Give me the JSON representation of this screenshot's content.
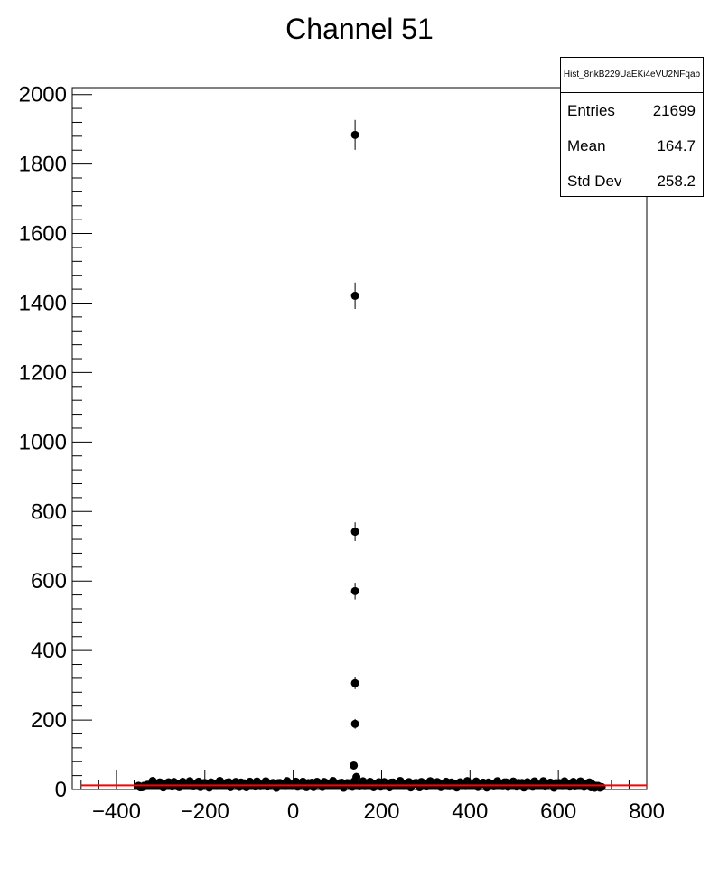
{
  "chart_data": {
    "type": "scatter",
    "title": "Channel 51",
    "xlabel": "",
    "ylabel": "",
    "xlim": [
      -500,
      800
    ],
    "ylim": [
      0,
      2020
    ],
    "x_ticks": [
      -400,
      -200,
      0,
      200,
      400,
      600,
      800
    ],
    "y_ticks": [
      0,
      200,
      400,
      600,
      800,
      1000,
      1200,
      1400,
      1600,
      1800,
      2000
    ],
    "x_tick_labels": [
      "−400",
      "−200",
      "0",
      "200",
      "400",
      "600",
      "800"
    ],
    "y_tick_labels": [
      "0",
      "200",
      "400",
      "600",
      "800",
      "1000",
      "1200",
      "1400",
      "1600",
      "1800",
      "2000"
    ],
    "grid": false,
    "marker_color": "#000000",
    "fit_line_color": "#ff0000",
    "baseline": {
      "x_range": [
        -350,
        700
      ],
      "approx_level": 15,
      "note": "dense band of low-count points"
    },
    "series": [
      {
        "peak_points": [
          {
            "x": 140,
            "y": 1884,
            "err": 43
          },
          {
            "x": 140,
            "y": 1421,
            "err": 38
          },
          {
            "x": 140,
            "y": 742,
            "err": 27
          },
          {
            "x": 140,
            "y": 571,
            "err": 24
          },
          {
            "x": 140,
            "y": 306,
            "err": 17
          },
          {
            "x": 140,
            "y": 189,
            "err": 14
          },
          {
            "x": 137,
            "y": 69,
            "err": 8
          },
          {
            "x": 143,
            "y": 36,
            "err": 6
          }
        ]
      }
    ],
    "fit_line": {
      "x": [
        -480,
        800
      ],
      "y": [
        12,
        12
      ]
    }
  },
  "stats": {
    "name": "Hist_8nkB229UaEKi4eVU2NFqab",
    "rows": [
      {
        "label": "Entries",
        "value": "21699"
      },
      {
        "label": "Mean",
        "value": "164.7"
      },
      {
        "label": "Std Dev",
        "value": "258.2"
      }
    ]
  }
}
